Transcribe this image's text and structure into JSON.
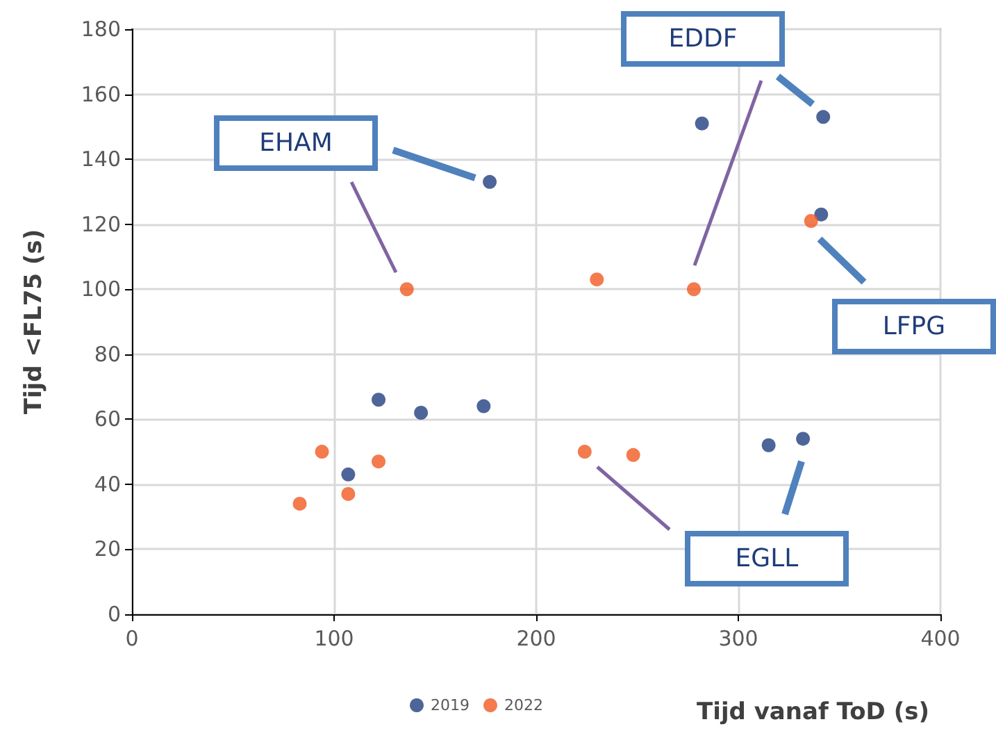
{
  "chart_data": {
    "type": "scatter",
    "xlabel": "Tijd vanaf ToD (s)",
    "ylabel": "Tijd <FL75 (s)",
    "xlim": [
      0,
      400
    ],
    "xticks": [
      0,
      100,
      200,
      300,
      400
    ],
    "ylim": [
      0,
      180
    ],
    "yticks": [
      0,
      20,
      40,
      60,
      80,
      100,
      120,
      140,
      160,
      180
    ],
    "grid": true,
    "legend": "bottom",
    "marker": "circle",
    "series": [
      {
        "name": "2019",
        "color": "#203f80",
        "x": [
          177,
          282,
          342,
          341,
          122,
          143,
          174,
          107,
          315,
          332
        ],
        "values": [
          133,
          151,
          153,
          123,
          66,
          62,
          64,
          43,
          52,
          54
        ]
      },
      {
        "name": "2022",
        "color": "#f05a22",
        "x": [
          136,
          230,
          278,
          336,
          94,
          122,
          107,
          83,
          224,
          248
        ],
        "values": [
          100,
          103,
          100,
          121,
          50,
          47,
          37,
          34,
          50,
          49
        ]
      }
    ],
    "annotations": [
      "EHAM",
      "EDDF",
      "LFPG",
      "EGLL"
    ]
  }
}
